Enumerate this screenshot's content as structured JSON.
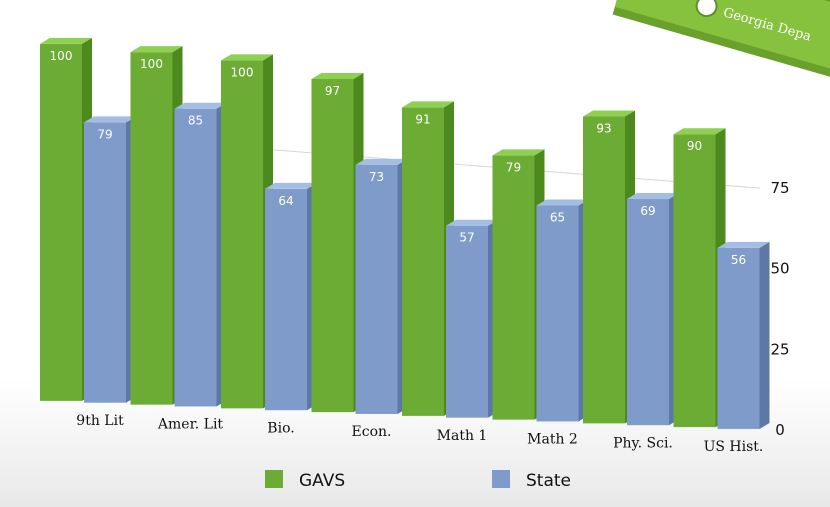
{
  "banner": {
    "text": "Georgia Depa"
  },
  "colors": {
    "gavs": "#6cab34",
    "gavs_dark": "#4d8a1e",
    "gavs_top": "#8fcf52",
    "state": "#7f9bc9",
    "state_dark": "#5d78a6",
    "state_top": "#a3bde3",
    "banner": "#86c23d"
  },
  "chart_data": {
    "type": "bar",
    "categories": [
      "9th Lit",
      "Amer. Lit",
      "Bio.",
      "Econ.",
      "Math 1",
      "Math 2",
      "Phy. Sci.",
      "US Hist."
    ],
    "series": [
      {
        "name": "GAVS",
        "values": [
          100,
          100,
          100,
          97,
          91,
          79,
          93,
          90
        ]
      },
      {
        "name": "State",
        "values": [
          79,
          85,
          64,
          73,
          57,
          65,
          69,
          56
        ]
      }
    ],
    "yticks": [
      0,
      25,
      50,
      75
    ],
    "ylim": [
      0,
      100
    ],
    "legend": "bottom",
    "grid": true
  }
}
